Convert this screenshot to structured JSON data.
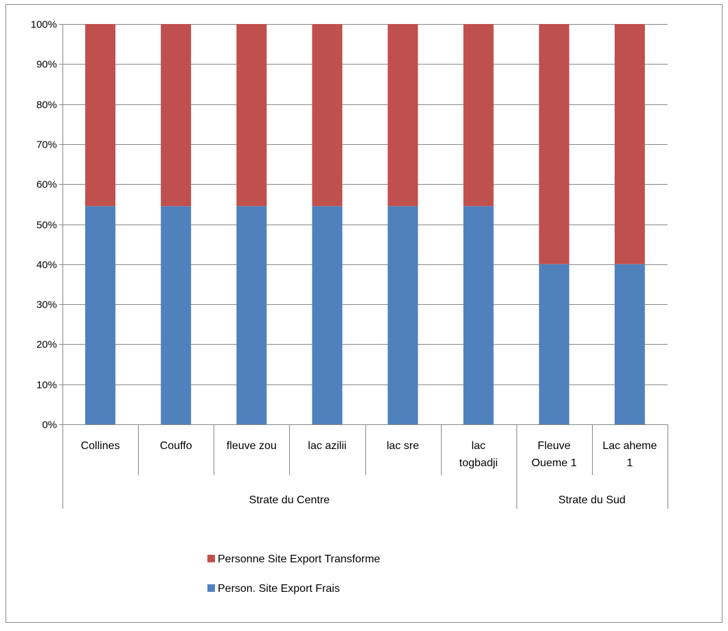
{
  "chart_data": {
    "type": "bar",
    "stacked": true,
    "normalized": true,
    "title": "",
    "xlabel": "",
    "ylabel": "",
    "ylim": [
      0,
      100
    ],
    "yticks": [
      "0%",
      "10%",
      "20%",
      "30%",
      "40%",
      "50%",
      "60%",
      "70%",
      "80%",
      "90%",
      "100%"
    ],
    "grid": true,
    "legend_position": "bottom",
    "categories": [
      {
        "label": [
          "Collines"
        ]
      },
      {
        "label": [
          "Couffo"
        ]
      },
      {
        "label": [
          "fleuve zou"
        ]
      },
      {
        "label": [
          "lac azilii"
        ]
      },
      {
        "label": [
          "lac sre"
        ]
      },
      {
        "label": [
          "lac",
          "togbadji"
        ]
      },
      {
        "label": [
          "Fleuve",
          "Oueme 1"
        ]
      },
      {
        "label": [
          "Lac aheme",
          "1"
        ]
      }
    ],
    "groups": [
      {
        "label": "Strate du Centre",
        "span": [
          0,
          5
        ]
      },
      {
        "label": "Strate du Sud",
        "span": [
          6,
          7
        ]
      }
    ],
    "series": [
      {
        "name": "Person. Site Export  Frais",
        "color": "#4f81bd",
        "values": [
          54.5,
          54.5,
          54.5,
          54.5,
          54.5,
          54.5,
          40,
          40
        ]
      },
      {
        "name": "Personne Site Export Transforme",
        "color": "#c0504d",
        "values": [
          45.5,
          45.5,
          45.5,
          45.5,
          45.5,
          45.5,
          60,
          60
        ]
      }
    ],
    "legend_order": [
      1,
      0
    ]
  }
}
